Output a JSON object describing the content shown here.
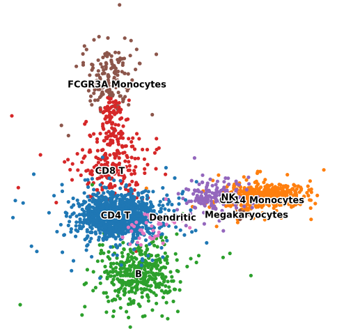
{
  "chart_data": {
    "type": "scatter",
    "title": "",
    "xlabel": "",
    "ylabel": "",
    "axes_visible": false,
    "grid": false,
    "legend": "on data",
    "point_counts": "approximate",
    "series": [
      {
        "name": "CD4 T",
        "color": "#1f77b4",
        "center": [
          168,
          310
        ],
        "spread": [
          28,
          16
        ],
        "n": 1100,
        "label_pos": [
          166,
          310
        ]
      },
      {
        "name": "CD8 T",
        "color": "#d62728",
        "center": [
          160,
          240
        ],
        "spread": [
          25,
          30
        ],
        "n": 300,
        "label_pos": [
          158,
          246
        ]
      },
      {
        "name": "FCGR3A Monocytes",
        "color": "#8c564b",
        "center": [
          162,
          108
        ],
        "spread": [
          18,
          22
        ],
        "n": 160,
        "label_pos": [
          168,
          122
        ]
      },
      {
        "name": "B",
        "color": "#2ca02c",
        "center": [
          198,
          392
        ],
        "spread": [
          26,
          22
        ],
        "n": 420,
        "label_pos": [
          199,
          394
        ]
      },
      {
        "name": "CD14 Monocytes",
        "color": "#ff7f0e",
        "center": [
          380,
          282
        ],
        "spread": [
          26,
          9
        ],
        "n": 500,
        "label_pos": [
          376,
          288
        ]
      },
      {
        "name": "NK",
        "color": "#9467bd",
        "center": [
          305,
          282
        ],
        "spread": [
          22,
          12
        ],
        "n": 140,
        "label_pos": [
          328,
          284
        ]
      },
      {
        "name": "Megakaryocytes",
        "color": "#8c564b",
        "center": [
          352,
          308
        ],
        "spread": [
          6,
          4
        ],
        "n": 12,
        "label_pos": [
          354,
          309
        ]
      },
      {
        "name": "Dendritic",
        "color": "#e377c2",
        "center": [
          218,
          325
        ],
        "spread": [
          18,
          12
        ],
        "n": 40,
        "label_pos": [
          248,
          313
        ]
      }
    ]
  }
}
